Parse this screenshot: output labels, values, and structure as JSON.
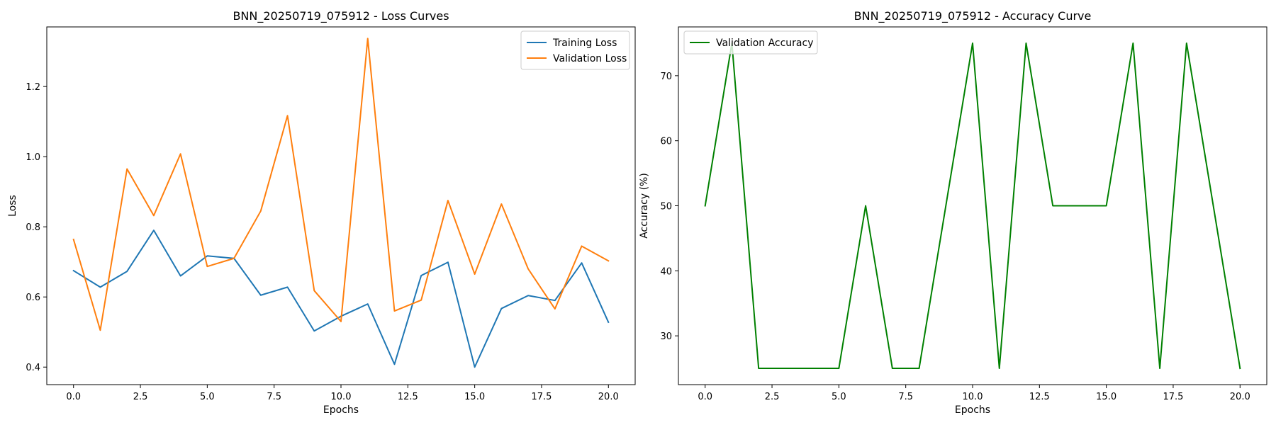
{
  "chart_data": [
    {
      "type": "line",
      "title": "BNN_20250719_075912 - Loss Curves",
      "xlabel": "Epochs",
      "ylabel": "Loss",
      "xlim": [
        -1.0,
        21.0
      ],
      "ylim": [
        0.35,
        1.37
      ],
      "xticks": [
        0.0,
        2.5,
        5.0,
        7.5,
        10.0,
        12.5,
        15.0,
        17.5,
        20.0
      ],
      "xtick_labels": [
        "0.0",
        "2.5",
        "5.0",
        "7.5",
        "10.0",
        "12.5",
        "15.0",
        "17.5",
        "20.0"
      ],
      "yticks": [
        0.4,
        0.6,
        0.8,
        1.0,
        1.2
      ],
      "ytick_labels": [
        "0.4",
        "0.6",
        "0.8",
        "1.0",
        "1.2"
      ],
      "legend_position": "upper right",
      "grid": false,
      "x": [
        0,
        1,
        2,
        3,
        4,
        5,
        6,
        7,
        8,
        9,
        10,
        11,
        12,
        13,
        14,
        15,
        16,
        17,
        18,
        19,
        20
      ],
      "series": [
        {
          "name": "Training Loss",
          "color": "#1f77b4",
          "values": [
            0.675,
            0.628,
            0.673,
            0.79,
            0.66,
            0.717,
            0.71,
            0.605,
            0.628,
            0.503,
            0.545,
            0.58,
            0.408,
            0.661,
            0.699,
            0.4,
            0.567,
            0.604,
            0.59,
            0.697,
            0.528
          ]
        },
        {
          "name": "Validation Loss",
          "color": "#ff7f0e",
          "values": [
            0.764,
            0.505,
            0.965,
            0.832,
            1.008,
            0.687,
            0.71,
            0.845,
            1.117,
            0.618,
            0.53,
            1.337,
            0.56,
            0.591,
            0.875,
            0.665,
            0.865,
            0.68,
            0.566,
            0.745,
            0.703
          ]
        }
      ]
    },
    {
      "type": "line",
      "title": "BNN_20250719_075912 - Accuracy Curve",
      "xlabel": "Epochs",
      "ylabel": "Accuracy (%)",
      "xlim": [
        -1.0,
        21.0
      ],
      "ylim": [
        22.5,
        77.5
      ],
      "xticks": [
        0.0,
        2.5,
        5.0,
        7.5,
        10.0,
        12.5,
        15.0,
        17.5,
        20.0
      ],
      "xtick_labels": [
        "0.0",
        "2.5",
        "5.0",
        "7.5",
        "10.0",
        "12.5",
        "15.0",
        "17.5",
        "20.0"
      ],
      "yticks": [
        30,
        40,
        50,
        60,
        70
      ],
      "ytick_labels": [
        "30",
        "40",
        "50",
        "60",
        "70"
      ],
      "legend_position": "upper left",
      "grid": false,
      "x": [
        0,
        1,
        2,
        3,
        4,
        5,
        6,
        7,
        8,
        9,
        10,
        11,
        12,
        13,
        14,
        15,
        16,
        17,
        18,
        19,
        20
      ],
      "series": [
        {
          "name": "Validation Accuracy",
          "color": "#008000",
          "values": [
            50,
            75,
            25,
            25,
            25,
            25,
            50,
            25,
            25,
            50,
            75,
            25,
            75,
            50,
            50,
            50,
            75,
            25,
            75,
            50,
            25
          ]
        }
      ]
    }
  ]
}
